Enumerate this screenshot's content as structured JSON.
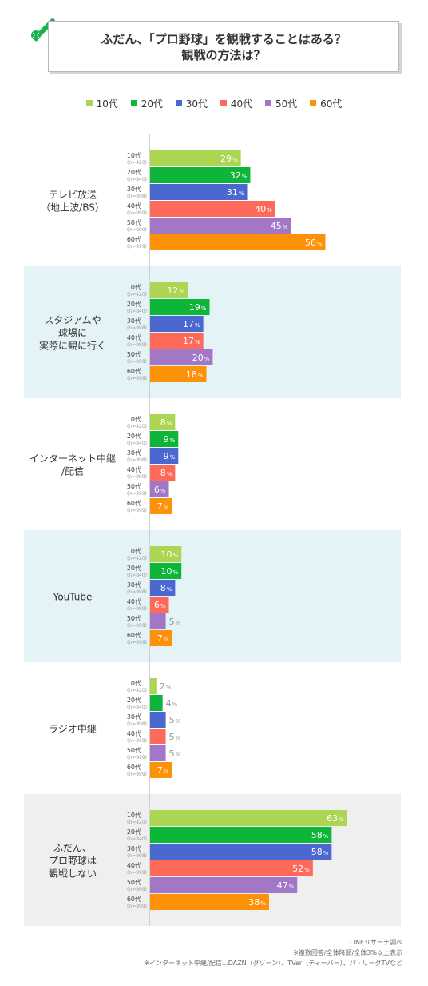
{
  "title": {
    "line1": "ふだん、「プロ野球」を観戦することはある？",
    "line2": "観戦の方法は？"
  },
  "chart_data": {
    "type": "bar",
    "orientation": "horizontal",
    "unit": "%",
    "xlim": [
      0,
      70
    ],
    "legend_position": "top-center",
    "age_groups": [
      {
        "name": "10代",
        "n": "(n=420)",
        "color": "#acd554"
      },
      {
        "name": "20代",
        "n": "(n=840)",
        "color": "#0db639"
      },
      {
        "name": "30代",
        "n": "(n=998)",
        "color": "#4a68d0"
      },
      {
        "name": "40代",
        "n": "(n=999)",
        "color": "#fd6a5a"
      },
      {
        "name": "50代",
        "n": "(n=999)",
        "color": "#a177c6"
      },
      {
        "name": "60代",
        "n": "(n=999)",
        "color": "#fd9208"
      }
    ],
    "categories": [
      {
        "label_lines": [
          "テレビ放送",
          "（地上波/BS）"
        ],
        "values": [
          29,
          32,
          31,
          40,
          45,
          56
        ],
        "shaded": false,
        "shade": ""
      },
      {
        "label_lines": [
          "スタジアムや",
          "球場に",
          "実際に観に行く"
        ],
        "values": [
          12,
          19,
          17,
          17,
          20,
          18
        ],
        "shaded": true,
        "shade": "#e4f3f6"
      },
      {
        "label_lines": [
          "インターネット中継",
          "/配信"
        ],
        "values": [
          8,
          9,
          9,
          8,
          6,
          7
        ],
        "shaded": false,
        "shade": ""
      },
      {
        "label_lines": [
          "YouTube"
        ],
        "values": [
          10,
          10,
          8,
          6,
          5,
          7
        ],
        "shaded": true,
        "shade": "#e4f3f6"
      },
      {
        "label_lines": [
          "ラジオ中継"
        ],
        "values": [
          2,
          4,
          5,
          5,
          5,
          7
        ],
        "shaded": false,
        "shade": ""
      },
      {
        "label_lines": [
          "ふだん、",
          "プロ野球は",
          "観戦しない"
        ],
        "values": [
          63,
          58,
          58,
          52,
          47,
          38
        ],
        "shaded": true,
        "shade": "#efefef"
      }
    ]
  },
  "footnotes": {
    "source": "LINEリサーチ調べ",
    "note1": "※複数回答/全体降順/全体3%以上表示",
    "note2": "※インターネット中継/配信…DAZN（ダゾーン）、TVer（ティーバー）、パ・リーグTVなど"
  }
}
